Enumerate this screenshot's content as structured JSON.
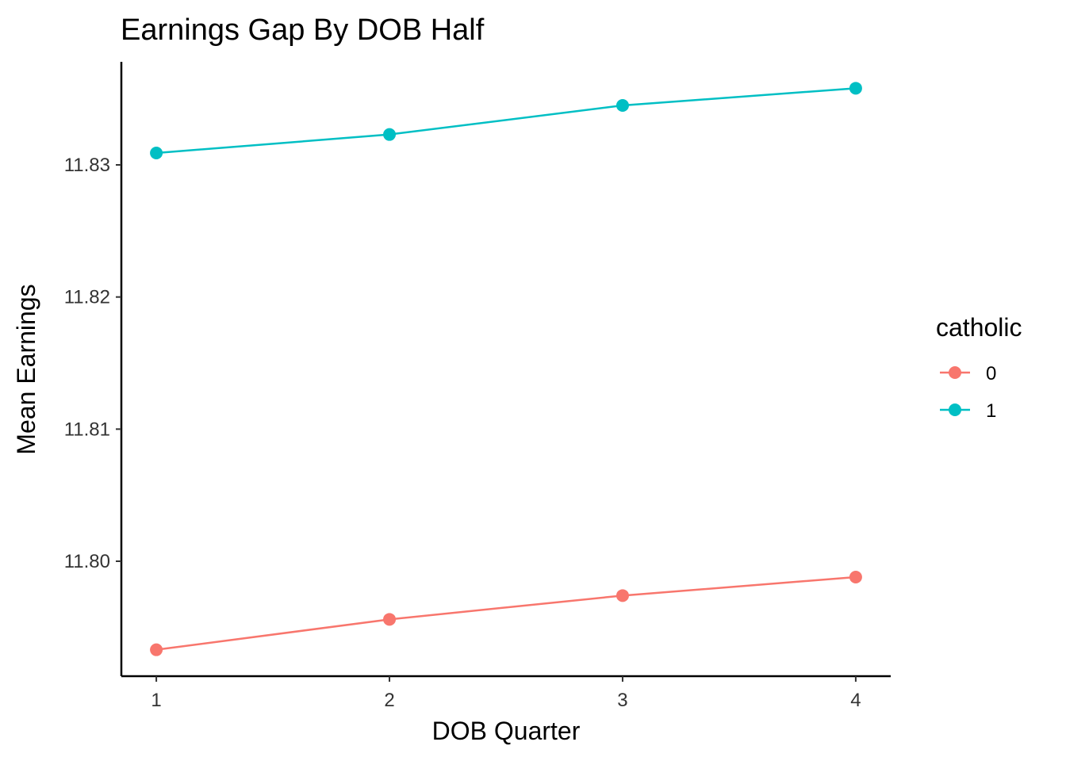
{
  "chart_data": {
    "type": "line",
    "title": "Earnings Gap By DOB Half",
    "xlabel": "DOB Quarter",
    "ylabel": "Mean Earnings",
    "x": [
      1,
      2,
      3,
      4
    ],
    "xticks": [
      "1",
      "2",
      "3",
      "4"
    ],
    "yticks": [
      11.8,
      11.81,
      11.82,
      11.83
    ],
    "ytick_labels": [
      "11.80",
      "11.81",
      "11.82",
      "11.83"
    ],
    "xlim": [
      0.85,
      4.15
    ],
    "ylim": [
      11.7913,
      11.8378
    ],
    "grid": false,
    "legend": {
      "title": "catholic",
      "placement": "right"
    },
    "series": [
      {
        "name": "0",
        "color": "#F8766D",
        "values": [
          11.7933,
          11.7956,
          11.7974,
          11.7988
        ]
      },
      {
        "name": "1",
        "color": "#00BFC4",
        "values": [
          11.8309,
          11.8323,
          11.8345,
          11.8358
        ]
      }
    ]
  }
}
